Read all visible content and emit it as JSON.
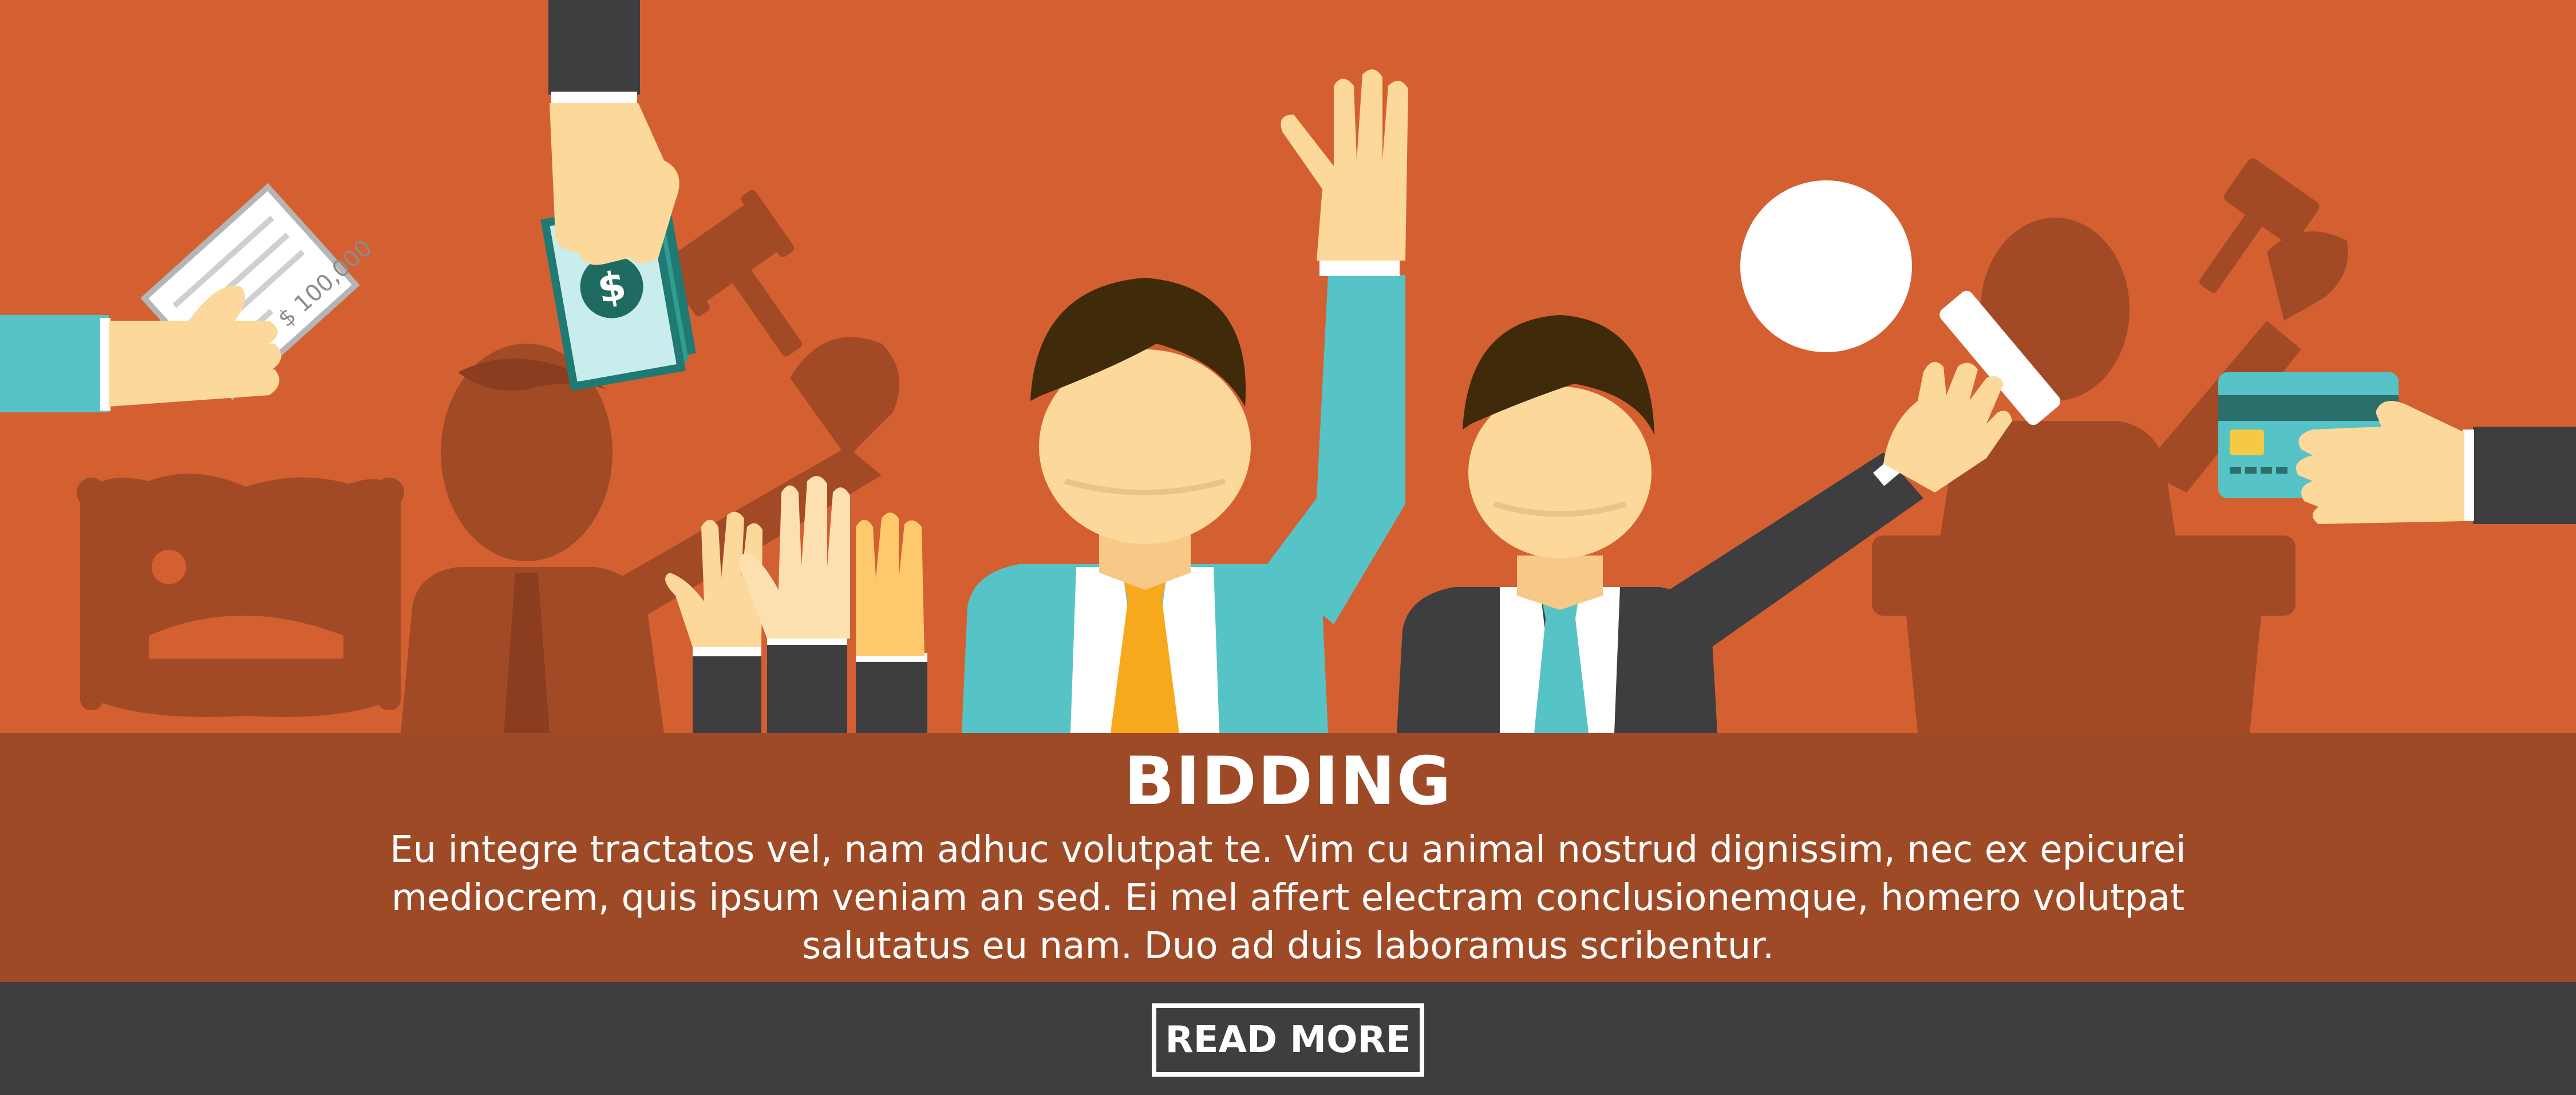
{
  "banner": {
    "title": "BIDDING",
    "body": "Eu integre tractatos vel, nam adhuc volutpat te. Vim cu animal nostrud dignissim, nec ex epicurei mediocrem, quis ipsum veniam an sed. Ei mel affert electram conclusionemque, homero volutpat salutatus eu nam. Duo ad duis laboramus scribentur.",
    "button_label": "READ MORE"
  },
  "illustration": {
    "check_amount": "$ 100,000",
    "cash_symbol": "$",
    "icons": [
      "hand-check-icon",
      "hand-cash-icon",
      "gavel-icon",
      "raised-hands-icon",
      "bidder-icon",
      "auction-paddle-icon",
      "credit-card-icon",
      "auctioneer-podium-icon",
      "antique-chair-icon"
    ]
  },
  "colors": {
    "background": "#d46032",
    "silhouette": "#a24a26",
    "band": "#9f4a26",
    "footer": "#3e3e40",
    "skin": "#fcd99b",
    "teal": "#56c3c6",
    "hair": "#3f2a0a",
    "tie": "#f6a91c",
    "text": "#ffffff"
  }
}
